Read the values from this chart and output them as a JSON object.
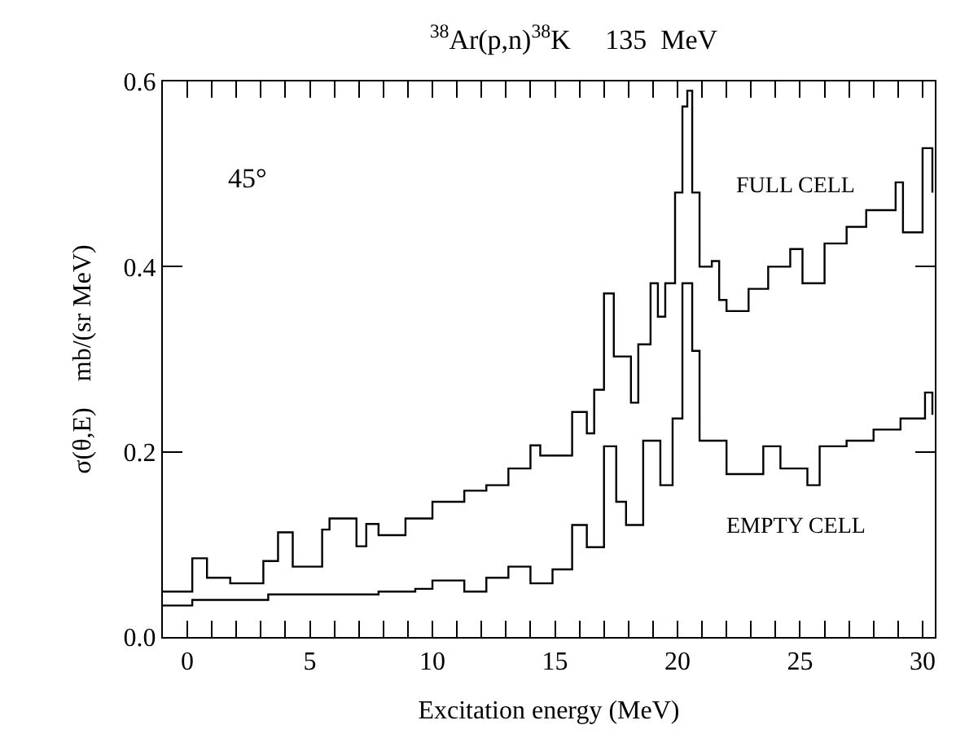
{
  "chart_data": {
    "type": "step",
    "title": "$^{38}$Ar(p,n)$^{38}$K     135  MeV",
    "xlabel": "Excitation energy (MeV)",
    "ylabel": "σ(θ,E)    mb/(sr MeV)",
    "annotations": [
      "45°",
      "FULL CELL",
      "EMPTY CELL"
    ],
    "series": [
      {
        "color": "#000000",
        "x": [
          -1,
          0.2,
          0.8,
          1.75,
          3.1,
          3.7,
          4.3,
          5.5,
          5.8,
          6.9,
          7.3,
          7.8,
          8.9,
          10,
          11.3,
          12.2,
          13.1,
          14,
          14.4,
          14.8,
          15.7,
          16.3,
          16.6,
          17.0,
          17.4,
          18.1,
          18.4,
          18.9,
          19.2,
          19.5,
          19.9,
          20.2,
          20.4,
          20.6,
          20.9,
          21.4,
          21.7,
          22.0,
          22.9,
          23.7,
          24.6,
          25.1,
          26.0,
          26.9,
          27.7,
          28.9,
          29.2,
          30.0,
          30.4
        ],
        "values": [
          0.049,
          0.085,
          0.064,
          0.058,
          0.082,
          0.113,
          0.076,
          0.116,
          0.128,
          0.098,
          0.122,
          0.11,
          0.128,
          0.146,
          0.158,
          0.164,
          0.182,
          0.207,
          0.196,
          0.196,
          0.243,
          0.22,
          0.267,
          0.371,
          0.303,
          0.253,
          0.316,
          0.382,
          0.346,
          0.382,
          0.48,
          0.573,
          0.59,
          0.48,
          0.4,
          0.406,
          0.364,
          0.352,
          0.376,
          0.4,
          0.419,
          0.382,
          0.425,
          0.443,
          0.461,
          0.491,
          0.437,
          0.528,
          0.48
        ]
      },
      {
        "color": "#000000",
        "x": [
          -1,
          0.2,
          2.2,
          3.3,
          5.5,
          7.8,
          9.3,
          10,
          11.3,
          12.2,
          13.1,
          14,
          14.9,
          15.7,
          16.3,
          17.0,
          17.5,
          17.9,
          18.6,
          19.3,
          19.8,
          20.2,
          20.6,
          20.9,
          22.0,
          23.5,
          24.2,
          25.3,
          25.8,
          26.9,
          28,
          29.1,
          30.1,
          30.4
        ],
        "values": [
          0.034,
          0.04,
          0.04,
          0.046,
          0.046,
          0.049,
          0.052,
          0.061,
          0.049,
          0.064,
          0.076,
          0.058,
          0.073,
          0.121,
          0.097,
          0.206,
          0.146,
          0.121,
          0.212,
          0.164,
          0.236,
          0.382,
          0.309,
          0.212,
          0.176,
          0.206,
          0.182,
          0.164,
          0.206,
          0.212,
          0.224,
          0.236,
          0.264,
          0.24
        ]
      }
    ],
    "xlim": [
      -1,
      30.5
    ],
    "ylim": [
      0,
      0.6
    ],
    "xticks": [
      {
        "value": -1,
        "label": null
      },
      0,
      {
        "value": 1,
        "label": null
      },
      {
        "value": 2,
        "label": null
      },
      {
        "value": 3,
        "label": null
      },
      {
        "value": 4,
        "label": null
      },
      5,
      {
        "value": 6,
        "label": null
      },
      {
        "value": 7,
        "label": null
      },
      {
        "value": 8,
        "label": null
      },
      {
        "value": 9,
        "label": null
      },
      10,
      {
        "value": 11,
        "label": null
      },
      {
        "value": 12,
        "label": null
      },
      {
        "value": 13,
        "label": null
      },
      {
        "value": 14,
        "label": null
      },
      15,
      {
        "value": 16,
        "label": null
      },
      {
        "value": 17,
        "label": null
      },
      {
        "value": 18,
        "label": null
      },
      {
        "value": 19,
        "label": null
      },
      20,
      {
        "value": 21,
        "label": null
      },
      {
        "value": 22,
        "label": null
      },
      {
        "value": 23,
        "label": null
      },
      {
        "value": 24,
        "label": null
      },
      25,
      {
        "value": 26,
        "label": null
      },
      {
        "value": 27,
        "label": null
      },
      {
        "value": 28,
        "label": null
      },
      {
        "value": 29,
        "label": null
      },
      30
    ],
    "yticks": [
      {
        "value": 0,
        "label": "0.0"
      },
      {
        "value": 0.2,
        "label": "0.2"
      },
      {
        "value": 0.4,
        "label": "0.4"
      },
      {
        "value": 0.6,
        "label": "0.6"
      }
    ],
    "line_style": "solid",
    "marker": "none"
  }
}
